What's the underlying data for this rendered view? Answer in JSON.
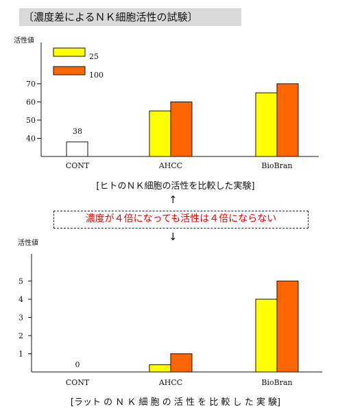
{
  "title": "〔濃度差によるＮＫ細胞活性の試験〕",
  "callout": "濃度が４倍になっても活性は４倍にならない",
  "arrow_up": "↑",
  "arrow_down": "↓",
  "colors": {
    "series1": "#ffff00",
    "series2": "#ff6600",
    "outline": "#111111"
  },
  "chart_data": [
    {
      "type": "bar",
      "caption": "[ヒトのＮＫ細胞の活性を比較した実験]",
      "ylabel": "活性値",
      "categories": [
        "CONT",
        "AHCC",
        "BioBran"
      ],
      "yticks": [
        40,
        50,
        60,
        70
      ],
      "ylim": [
        30,
        75
      ],
      "legend": [
        "25",
        "100"
      ],
      "legend_placement": "top-left",
      "grid": false,
      "annotations": [
        {
          "category": "CONT",
          "text": "38"
        }
      ],
      "single_bar": {
        "category": "CONT",
        "value": 38
      },
      "series": [
        {
          "name": "25",
          "values": [
            null,
            55,
            65
          ]
        },
        {
          "name": "100",
          "values": [
            null,
            60,
            70
          ]
        }
      ]
    },
    {
      "type": "bar",
      "caption": "[ラット の Ｎ Ｋ 細 胞 の 活 性 を 比 較 し た 実 験]",
      "ylabel": "活性値",
      "categories": [
        "CONT",
        "AHCC",
        "BioBran"
      ],
      "yticks": [
        1,
        2,
        3,
        4,
        5
      ],
      "ylim": [
        -0.2,
        5.5
      ],
      "grid": false,
      "annotations": [
        {
          "category": "CONT",
          "text": "0"
        }
      ],
      "series": [
        {
          "name": "25",
          "values": [
            0,
            0.4,
            4
          ]
        },
        {
          "name": "100",
          "values": [
            0,
            1,
            5
          ]
        }
      ]
    }
  ]
}
